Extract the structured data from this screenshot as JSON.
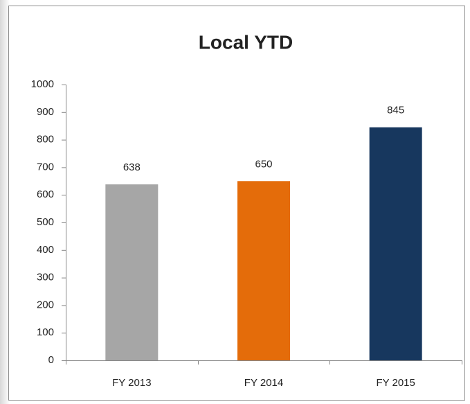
{
  "chart_data": {
    "type": "bar",
    "title": "Local YTD",
    "categories": [
      "FY 2013",
      "FY 2014",
      "FY 2015"
    ],
    "values": [
      638,
      650,
      845
    ],
    "colors": [
      "#a6a6a6",
      "#e46c0a",
      "#17375e"
    ],
    "ylim": [
      0,
      1000
    ],
    "yticks": [
      0,
      100,
      200,
      300,
      400,
      500,
      600,
      700,
      800,
      900,
      1000
    ],
    "grid": false
  }
}
